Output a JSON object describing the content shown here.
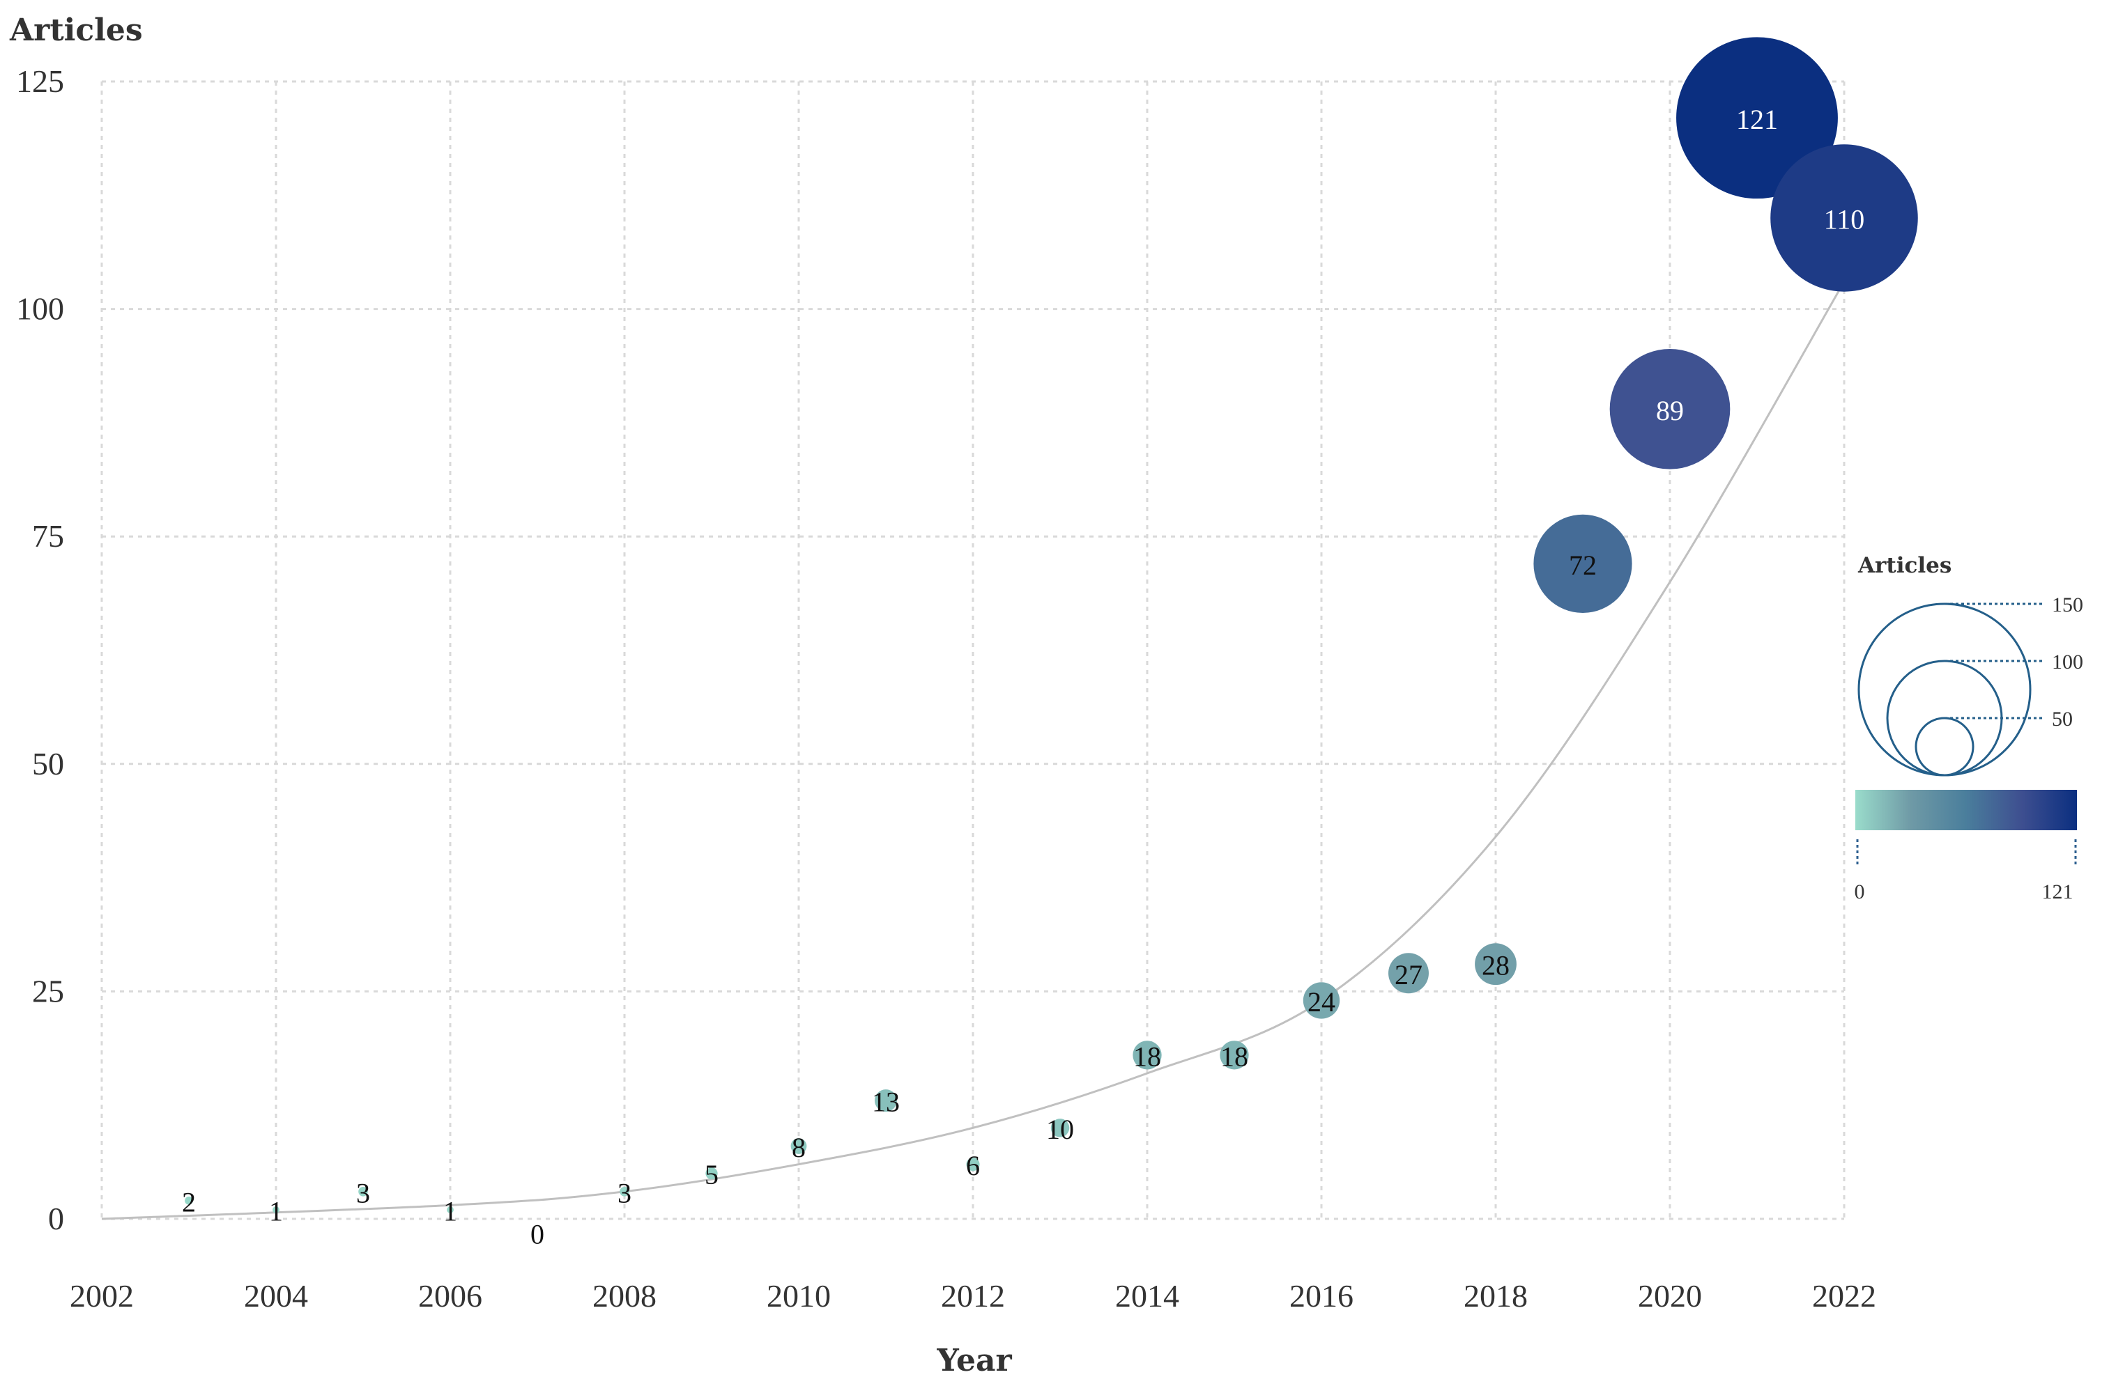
{
  "chart_data": {
    "type": "scatter",
    "subtype": "bubble",
    "title": "",
    "ylabel": "Articles",
    "xlabel": "Year",
    "xlim": [
      2002,
      2022
    ],
    "ylim": [
      0,
      125
    ],
    "x_ticks": [
      "2002",
      "2004",
      "2006",
      "2008",
      "2010",
      "2012",
      "2014",
      "2016",
      "2018",
      "2020",
      "2022"
    ],
    "y_ticks": [
      "0",
      "25",
      "50",
      "75",
      "100",
      "125"
    ],
    "grid": true,
    "series": [
      {
        "name": "Articles",
        "points": [
          {
            "x": 2003,
            "y": 2,
            "label": "2"
          },
          {
            "x": 2004,
            "y": 1,
            "label": "1"
          },
          {
            "x": 2005,
            "y": 3,
            "label": "3"
          },
          {
            "x": 2006,
            "y": 1,
            "label": "1"
          },
          {
            "x": 2007,
            "y": 0,
            "label": "0"
          },
          {
            "x": 2008,
            "y": 3,
            "label": "3"
          },
          {
            "x": 2009,
            "y": 5,
            "label": "5"
          },
          {
            "x": 2010,
            "y": 8,
            "label": "8"
          },
          {
            "x": 2011,
            "y": 13,
            "label": "13"
          },
          {
            "x": 2012,
            "y": 6,
            "label": "6"
          },
          {
            "x": 2013,
            "y": 10,
            "label": "10"
          },
          {
            "x": 2014,
            "y": 18,
            "label": "18"
          },
          {
            "x": 2015,
            "y": 18,
            "label": "18"
          },
          {
            "x": 2016,
            "y": 24,
            "label": "24"
          },
          {
            "x": 2017,
            "y": 27,
            "label": "27"
          },
          {
            "x": 2018,
            "y": 28,
            "label": "28"
          },
          {
            "x": 2019,
            "y": 72,
            "label": "72"
          },
          {
            "x": 2020,
            "y": 89,
            "label": "89"
          },
          {
            "x": 2021,
            "y": 121,
            "label": "121"
          },
          {
            "x": 2022,
            "y": 110,
            "label": "110"
          }
        ]
      }
    ],
    "trend": {
      "type": "exponential",
      "points": [
        {
          "x": 2002,
          "y": 0
        },
        {
          "x": 2006,
          "y": 1.5
        },
        {
          "x": 2008,
          "y": 3
        },
        {
          "x": 2010,
          "y": 6
        },
        {
          "x": 2012,
          "y": 10
        },
        {
          "x": 2014,
          "y": 16
        },
        {
          "x": 2016,
          "y": 24
        },
        {
          "x": 2018,
          "y": 42
        },
        {
          "x": 2020,
          "y": 70
        },
        {
          "x": 2022,
          "y": 103
        }
      ]
    },
    "size_legend": {
      "title": "Articles",
      "values": [
        150,
        100,
        50
      ],
      "labels": [
        "150",
        "100",
        "50"
      ]
    },
    "color_scale": {
      "min": 0,
      "max": 121,
      "min_label": "0",
      "max_label": "121",
      "colors": [
        "#9adccb",
        "#6f9aa6",
        "#4a7e9c",
        "#3e4f90",
        "#0b2f80"
      ]
    }
  }
}
